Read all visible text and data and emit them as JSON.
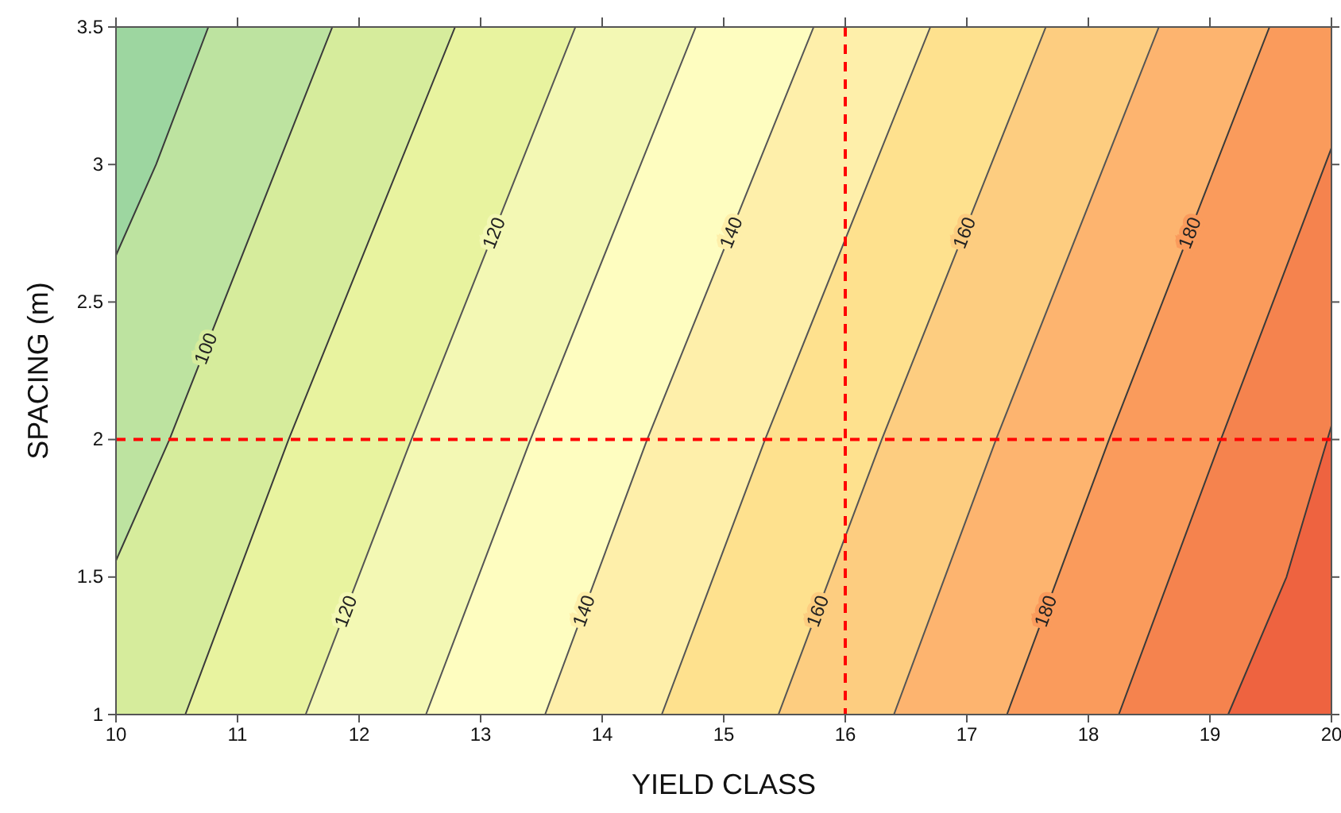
{
  "chart_data": {
    "type": "line",
    "xlabel": "YIELD CLASS",
    "ylabel": "SPACING (m)",
    "xlim": [
      10,
      20
    ],
    "ylim": [
      1,
      3.5
    ],
    "xticks": [
      10,
      11,
      12,
      13,
      14,
      15,
      16,
      17,
      18,
      19,
      20
    ],
    "yticks": [
      1,
      1.5,
      2,
      2.5,
      3,
      3.5
    ],
    "grid": false,
    "legend": false,
    "marker": "none",
    "line_style": "solid",
    "colors": [
      "#9dd6a0",
      "#bde3a0",
      "#d6ec9c",
      "#e8f39f",
      "#f3f8b4",
      "#fefdc0",
      "#feefaa",
      "#fee18e",
      "#fdcd80",
      "#fdb46f",
      "#fa9b5c",
      "#f5834e",
      "#ee6340"
    ],
    "series": [
      {
        "color": "#3a3a3a",
        "x": [
          10,
          10.33,
          10.76
        ],
        "values": [
          2.67,
          3,
          3.5
        ]
      },
      {
        "name": "100",
        "color": "#3a3a3a",
        "x": [
          10,
          10.44,
          11.78
        ],
        "values": [
          1.56,
          2,
          3.5
        ]
      },
      {
        "color": "#3a3a3a",
        "x": [
          10.57,
          11.42,
          12.79
        ],
        "values": [
          1,
          2,
          3.5
        ]
      },
      {
        "name": "120",
        "color": "#555555",
        "x": [
          11.56,
          12.43,
          13.78
        ],
        "values": [
          1,
          2,
          3.5
        ]
      },
      {
        "color": "#555555",
        "x": [
          12.55,
          13.41,
          14.77
        ],
        "values": [
          1,
          2,
          3.5
        ]
      },
      {
        "name": "140",
        "color": "#555555",
        "x": [
          13.53,
          14.37,
          15.74
        ],
        "values": [
          1,
          2,
          3.5
        ]
      },
      {
        "color": "#555555",
        "x": [
          14.49,
          15.34,
          16.7
        ],
        "values": [
          1,
          2,
          3.5
        ]
      },
      {
        "name": "160",
        "color": "#555555",
        "x": [
          15.45,
          16.3,
          17.65
        ],
        "values": [
          1,
          2,
          3.5
        ]
      },
      {
        "color": "#555555",
        "x": [
          16.4,
          17.24,
          18.58
        ],
        "values": [
          1,
          2,
          3.5
        ]
      },
      {
        "name": "180",
        "color": "#3a3a3a",
        "x": [
          17.33,
          18.17,
          19.49
        ],
        "values": [
          1,
          2,
          3.5
        ]
      },
      {
        "color": "#3a3a3a",
        "x": [
          18.25,
          19.09,
          20
        ],
        "values": [
          1,
          2,
          3.06
        ]
      },
      {
        "color": "#3a3a3a",
        "x": [
          19.15,
          19.63,
          20
        ],
        "values": [
          1,
          1.5,
          2.05
        ]
      }
    ],
    "ref_lines": [
      {
        "axis": "x",
        "value": 16,
        "color": "#ff0000",
        "line_style": "dashed"
      },
      {
        "axis": "y",
        "value": 2,
        "color": "#ff0000",
        "line_style": "dashed"
      }
    ]
  }
}
